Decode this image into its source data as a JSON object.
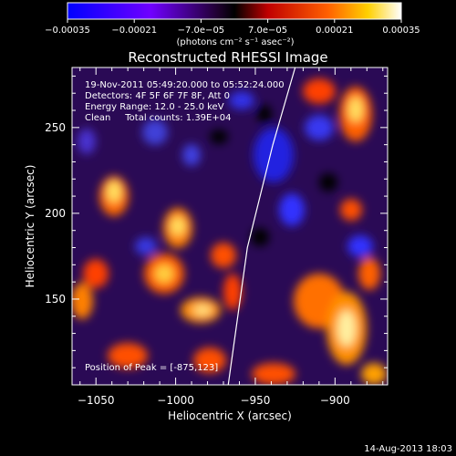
{
  "chart_data": {
    "type": "heatmap",
    "title": "Reconstructed RHESSI Image",
    "xlabel": "Heliocentric X (arcsec)",
    "ylabel": "Heliocentric Y (arcsec)",
    "xlim": [
      -1065,
      -867
    ],
    "ylim": [
      100,
      285
    ],
    "x_ticks": [
      -1050,
      -1000,
      -950,
      -900
    ],
    "x_tick_labels": [
      "−1050",
      "−1000",
      "−950",
      "−900"
    ],
    "y_ticks": [
      150,
      200,
      250
    ],
    "y_tick_labels": [
      "150",
      "200",
      "250"
    ],
    "colorbar": {
      "ticks": [
        -0.00035,
        -0.00021,
        -7e-05,
        7e-05,
        0.00021,
        0.00035
      ],
      "tick_labels": [
        "−0.00035",
        "−0.00021",
        "−7.0e−05",
        "7.0e−05",
        "0.00021",
        "0.00035"
      ],
      "unit": "(photons cm⁻² s⁻¹ asec⁻²)",
      "colors": [
        "#0000ff",
        "#8000ff",
        "#000000",
        "#ff2000",
        "#ffd000",
        "#ffffff"
      ]
    },
    "info_lines": [
      "19-Nov-2011 05:49:20.000 to 05:52:24.000",
      "Detectors: 4F 5F 6F 7F 8F, Att 0",
      "Energy Range: 12.0 - 25.0 keV",
      "Clean     Total counts: 1.39E+04"
    ],
    "peak_label": "Position of Peak = [-875,123]",
    "limb_curve": [
      [
        -967,
        100
      ],
      [
        -955,
        180
      ],
      [
        -939,
        240
      ],
      [
        -925,
        285
      ]
    ],
    "grid": false,
    "legend": "none"
  },
  "footer_timestamp": "14-Aug-2013 18:03"
}
